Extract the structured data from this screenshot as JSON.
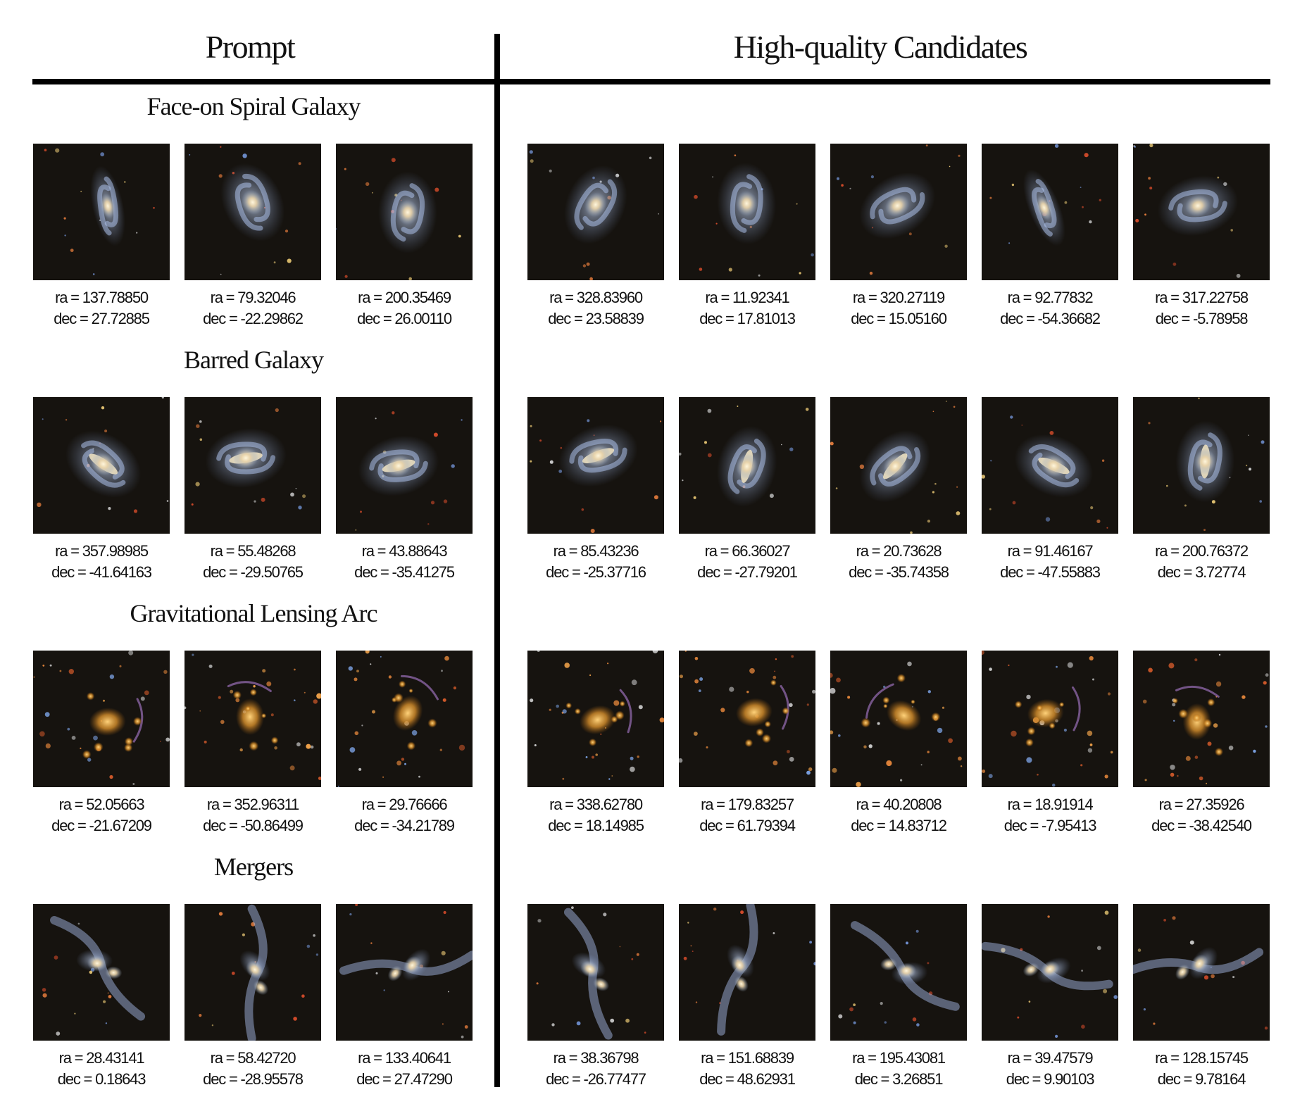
{
  "header": {
    "prompt_title": "Prompt",
    "candidates_title": "High-quality Candidates"
  },
  "rows": [
    {
      "title": "Face-on Spiral Galaxy",
      "prompt": [
        {
          "ra": "ra = 137.78850",
          "dec": "dec = 27.72885",
          "kind": "spiral-edge"
        },
        {
          "ra": "ra = 79.32046",
          "dec": "dec = -22.29862",
          "kind": "spiral"
        },
        {
          "ra": "ra = 200.35469",
          "dec": "dec = 26.00110",
          "kind": "spiral"
        }
      ],
      "candidates": [
        {
          "ra": "ra = 328.83960",
          "dec": "dec = 23.58839",
          "kind": "spiral"
        },
        {
          "ra": "ra = 11.92341",
          "dec": "dec = 17.81013",
          "kind": "spiral"
        },
        {
          "ra": "ra = 320.27119",
          "dec": "dec = 15.05160",
          "kind": "spiral"
        },
        {
          "ra": "ra = 92.77832",
          "dec": "dec = -54.36682",
          "kind": "spiral-edge"
        },
        {
          "ra": "ra = 317.22758",
          "dec": "dec = -5.78958",
          "kind": "spiral"
        }
      ]
    },
    {
      "title": "Barred Galaxy",
      "prompt": [
        {
          "ra": "ra = 357.98985",
          "dec": "dec = -41.64163",
          "kind": "barred"
        },
        {
          "ra": "ra = 55.48268",
          "dec": "dec = -29.50765",
          "kind": "barred"
        },
        {
          "ra": "ra = 43.88643",
          "dec": "dec = -35.41275",
          "kind": "barred"
        }
      ],
      "candidates": [
        {
          "ra": "ra = 85.43236",
          "dec": "dec = -25.37716",
          "kind": "barred"
        },
        {
          "ra": "ra = 66.36027",
          "dec": "dec = -27.79201",
          "kind": "barred"
        },
        {
          "ra": "ra = 20.73628",
          "dec": "dec = -35.74358",
          "kind": "barred"
        },
        {
          "ra": "ra = 91.46167",
          "dec": "dec = -47.55883",
          "kind": "barred"
        },
        {
          "ra": "ra = 200.76372",
          "dec": "dec = 3.72774",
          "kind": "barred"
        }
      ]
    },
    {
      "title": "Gravitational Lensing Arc",
      "prompt": [
        {
          "ra": "ra = 52.05663",
          "dec": "dec = -21.67209",
          "kind": "lens"
        },
        {
          "ra": "ra = 352.96311",
          "dec": "dec = -50.86499",
          "kind": "lens"
        },
        {
          "ra": "ra = 29.76666",
          "dec": "dec = -34.21789",
          "kind": "lens"
        }
      ],
      "candidates": [
        {
          "ra": "ra = 338.62780",
          "dec": "dec = 18.14985",
          "kind": "lens"
        },
        {
          "ra": "ra = 179.83257",
          "dec": "dec = 61.79394",
          "kind": "lens"
        },
        {
          "ra": "ra = 40.20808",
          "dec": "dec = 14.83712",
          "kind": "lens"
        },
        {
          "ra": "ra = 18.91914",
          "dec": "dec = -7.95413",
          "kind": "lens"
        },
        {
          "ra": "ra = 27.35926",
          "dec": "dec = -38.42540",
          "kind": "lens"
        }
      ]
    },
    {
      "title": "Mergers",
      "prompt": [
        {
          "ra": "ra = 28.43141",
          "dec": "dec = 0.18643",
          "kind": "merger"
        },
        {
          "ra": "ra = 58.42720",
          "dec": "dec = -28.95578",
          "kind": "merger"
        },
        {
          "ra": "ra = 133.40641",
          "dec": "dec = 27.47290",
          "kind": "merger"
        }
      ],
      "candidates": [
        {
          "ra": "ra = 38.36798",
          "dec": "dec = -26.77477",
          "kind": "merger"
        },
        {
          "ra": "ra = 151.68839",
          "dec": "dec = 48.62931",
          "kind": "merger"
        },
        {
          "ra": "ra = 195.43081",
          "dec": "dec = 3.26851",
          "kind": "merger"
        },
        {
          "ra": "ra = 39.47579",
          "dec": "dec = 9.90103",
          "kind": "merger"
        },
        {
          "ra": "ra = 128.15745",
          "dec": "dec = 9.78164",
          "kind": "merger"
        }
      ]
    }
  ]
}
